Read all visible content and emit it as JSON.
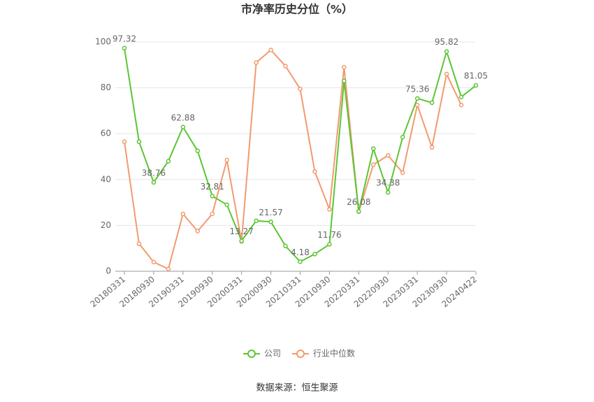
{
  "chart_data": {
    "type": "line",
    "title": "市净率历史分位（%）",
    "source": "数据来源：恒生聚源",
    "categories": [
      "20180331",
      null,
      "20180930",
      null,
      "20190331",
      null,
      "20190930",
      null,
      "20200331",
      null,
      "20200930",
      null,
      "20210331",
      null,
      "20210930",
      null,
      "20220331",
      null,
      "20220930",
      null,
      "20230331",
      null,
      "20230930",
      null,
      "20240422"
    ],
    "series": [
      {
        "name": "公司",
        "color": "#5cc534",
        "values": [
          97.32,
          56.5,
          38.76,
          48,
          62.88,
          52.5,
          32.81,
          29,
          13.27,
          22,
          21.57,
          11,
          4.18,
          7.5,
          11.76,
          83,
          26.08,
          53.5,
          34.38,
          58.5,
          75.36,
          73.5,
          95.82,
          76,
          81.05
        ]
      },
      {
        "name": "行业中位数",
        "color": "#f39a6e",
        "values": [
          56.5,
          12,
          4,
          1,
          25,
          17.5,
          25,
          48.5,
          13,
          91,
          96.5,
          89.5,
          79.5,
          43.5,
          27,
          89,
          26,
          46.5,
          50.5,
          43,
          72.5,
          54,
          86,
          72.5,
          null
        ]
      }
    ],
    "ylim": [
      0,
      100
    ],
    "yticks": [
      0,
      20,
      40,
      60,
      80,
      100
    ],
    "grid": true,
    "legend": "bottom"
  }
}
